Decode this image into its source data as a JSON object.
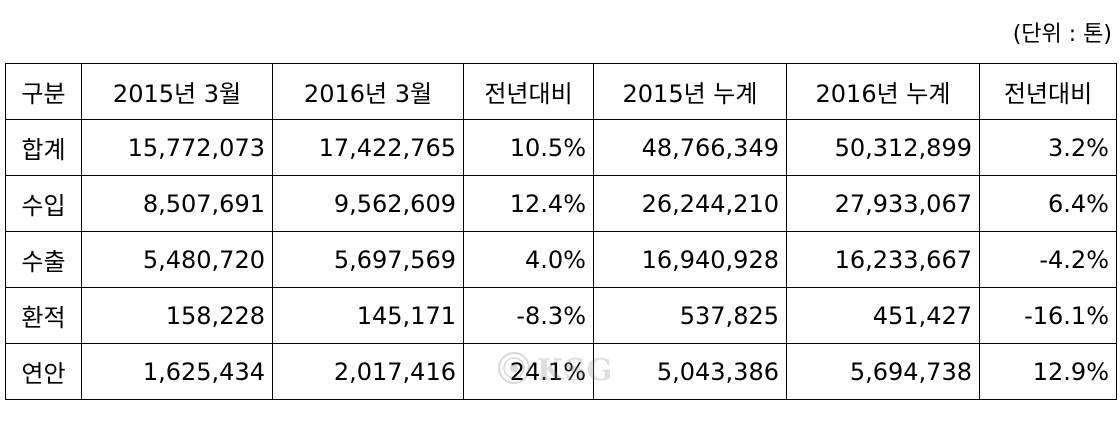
{
  "unit_note": "(단위 : 톤)",
  "table": {
    "headers": [
      "구분",
      "2015년 3월",
      "2016년 3월",
      "전년대비",
      "2015년 누계",
      "2016년 누계",
      "전년대비"
    ],
    "rows": [
      [
        "합계",
        "15,772,073",
        "17,422,765",
        "10.5%",
        "48,766,349",
        "50,312,899",
        "3.2%"
      ],
      [
        "수입",
        "8,507,691",
        "9,562,609",
        "12.4%",
        "26,244,210",
        "27,933,067",
        "6.4%"
      ],
      [
        "수출",
        "5,480,720",
        "5,697,569",
        "4.0%",
        "16,940,928",
        "16,233,667",
        "-4.2%"
      ],
      [
        "환적",
        "158,228",
        "145,171",
        "-8.3%",
        "537,825",
        "451,427",
        "-16.1%"
      ],
      [
        "연안",
        "1,625,434",
        "2,017,416",
        "24.1%",
        "5,043,386",
        "5,694,738",
        "12.9%"
      ]
    ]
  },
  "watermark": {
    "text": "KSG",
    "icon": "seal-logo-icon"
  }
}
